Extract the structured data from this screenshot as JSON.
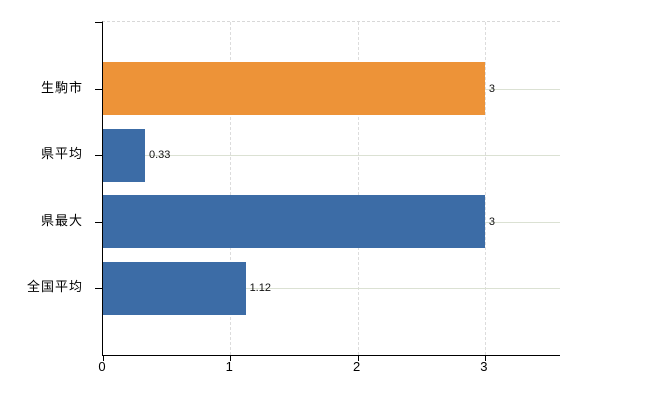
{
  "chart_data": {
    "type": "bar",
    "orientation": "horizontal",
    "title": "",
    "xlabel": "",
    "ylabel": "",
    "categories": [
      "生駒市",
      "県平均",
      "県最大",
      "全国平均"
    ],
    "values": [
      3,
      0.33,
      3,
      1.12
    ],
    "value_labels": [
      "3",
      "0.33",
      "3",
      "1.12"
    ],
    "bar_colors": [
      "#ED9338",
      "#3C6CA6",
      "#3C6CA6",
      "#3C6CA6"
    ],
    "x_ticks": [
      0,
      1,
      2,
      3
    ],
    "x_tick_labels": [
      "0",
      "1",
      "2",
      "3"
    ],
    "xlim": [
      0,
      3.59
    ],
    "grid": true,
    "legend": null,
    "colors": {
      "highlight_bar": "#ED9338",
      "default_bar": "#3C6CA6",
      "axis": "#000000",
      "vertical_grid": "#dcdcdc",
      "horizontal_grid": "#dbe1d3",
      "label_text": "#000000",
      "value_text": "#111111",
      "background": "#ffffff"
    }
  }
}
